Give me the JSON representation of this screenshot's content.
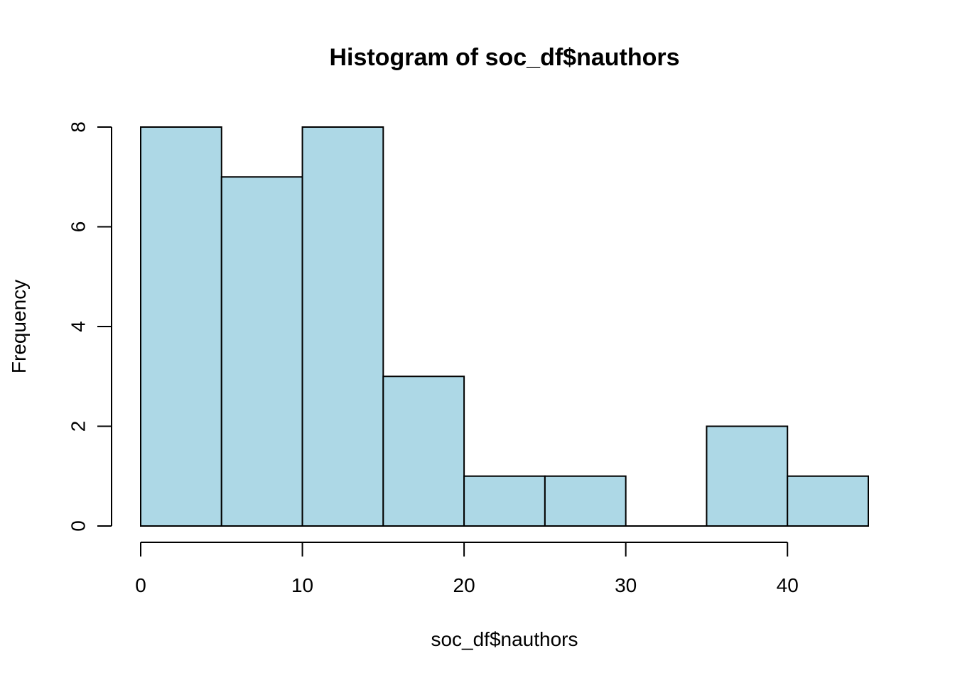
{
  "chart_data": {
    "type": "bar",
    "subtype": "histogram",
    "title": "Histogram of soc_df$nauthors",
    "xlabel": "soc_df$nauthors",
    "ylabel": "Frequency",
    "bins": [
      {
        "x0": 0,
        "x1": 5,
        "count": 8
      },
      {
        "x0": 5,
        "x1": 10,
        "count": 7
      },
      {
        "x0": 10,
        "x1": 15,
        "count": 8
      },
      {
        "x0": 15,
        "x1": 20,
        "count": 3
      },
      {
        "x0": 20,
        "x1": 25,
        "count": 1
      },
      {
        "x0": 25,
        "x1": 30,
        "count": 1
      },
      {
        "x0": 30,
        "x1": 35,
        "count": 0
      },
      {
        "x0": 35,
        "x1": 40,
        "count": 2
      },
      {
        "x0": 40,
        "x1": 45,
        "count": 1
      }
    ],
    "xlim": [
      0,
      45
    ],
    "ylim": [
      0,
      8
    ],
    "x_ticks": [
      0,
      10,
      20,
      30,
      40
    ],
    "y_ticks": [
      0,
      2,
      4,
      6,
      8
    ],
    "grid": false,
    "legend": "none",
    "bar_color": "#add8e6",
    "edge_color": "#000000"
  }
}
